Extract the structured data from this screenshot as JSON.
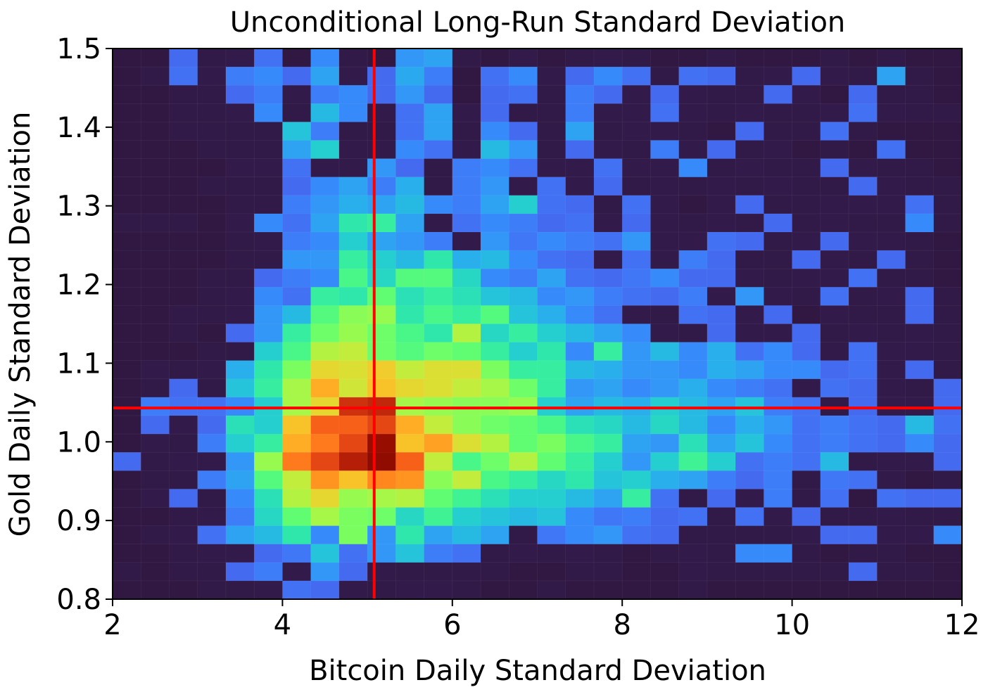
{
  "chart_data": {
    "type": "heatmap",
    "title": "Unconditional Long-Run Standard Deviation",
    "xlabel": "Bitcoin Daily Standard Deviation",
    "ylabel": "Gold Daily Standard Deviation",
    "xlim": [
      2,
      12
    ],
    "ylim": [
      0.8,
      1.5
    ],
    "x_ticks": [
      2,
      4,
      6,
      8,
      10,
      12
    ],
    "x_tick_labels": [
      "2",
      "4",
      "6",
      "8",
      "10",
      "12"
    ],
    "y_ticks": [
      0.8,
      0.9,
      1.0,
      1.1,
      1.2,
      1.3,
      1.4,
      1.5
    ],
    "y_tick_labels": [
      "0.8",
      "0.9",
      "1.0",
      "1.1",
      "1.2",
      "1.3",
      "1.4",
      "1.5"
    ],
    "grid": false,
    "colormap": "turbo",
    "bins_x": 30,
    "bins_y": 30,
    "reference_lines": {
      "vertical_x": 5.08,
      "horizontal_y": 1.043,
      "color": "#ff0000"
    },
    "peak": {
      "x": 5.17,
      "y": 1.0,
      "level": 1.0
    },
    "density_levels_note": "values normalized 0-1 per cell, rows from top (y=1.5) to bottom (y=0.8)",
    "density": [
      [
        0.02,
        0.02,
        0.05,
        0.03,
        0.04,
        0.06,
        0.02,
        0.1,
        0.03,
        0.02,
        0.12,
        0.14,
        0.03,
        0.02,
        0.04,
        0.02,
        0.03,
        0.04,
        0.03,
        0.02,
        0.02,
        0.03,
        0.02,
        0.02,
        0.02,
        0.03,
        0.02,
        0.03,
        0.02,
        0.02
      ],
      [
        0.02,
        0.03,
        0.06,
        0.04,
        0.08,
        0.1,
        0.05,
        0.14,
        0.04,
        0.05,
        0.15,
        0.08,
        0.02,
        0.06,
        0.1,
        0.04,
        0.05,
        0.1,
        0.06,
        0.03,
        0.06,
        0.05,
        0.03,
        0.04,
        0.05,
        0.04,
        0.03,
        0.14,
        0.03,
        0.02
      ],
      [
        0.02,
        0.02,
        0.03,
        0.03,
        0.05,
        0.08,
        0.04,
        0.08,
        0.1,
        0.05,
        0.12,
        0.05,
        0.02,
        0.05,
        0.06,
        0.03,
        0.08,
        0.05,
        0.04,
        0.05,
        0.04,
        0.03,
        0.03,
        0.05,
        0.04,
        0.02,
        0.05,
        0.03,
        0.03,
        0.02
      ],
      [
        0.02,
        0.02,
        0.03,
        0.03,
        0.04,
        0.1,
        0.03,
        0.18,
        0.1,
        0.04,
        0.06,
        0.14,
        0.04,
        0.05,
        0.03,
        0.03,
        0.08,
        0.04,
        0.04,
        0.06,
        0.04,
        0.03,
        0.04,
        0.03,
        0.03,
        0.04,
        0.06,
        0.04,
        0.03,
        0.03
      ],
      [
        0.02,
        0.02,
        0.03,
        0.03,
        0.03,
        0.03,
        0.2,
        0.08,
        0.03,
        0.03,
        0.06,
        0.14,
        0.03,
        0.1,
        0.05,
        0.03,
        0.14,
        0.03,
        0.04,
        0.04,
        0.03,
        0.02,
        0.05,
        0.03,
        0.03,
        0.06,
        0.03,
        0.02,
        0.02,
        0.02
      ],
      [
        0.02,
        0.02,
        0.02,
        0.03,
        0.03,
        0.03,
        0.14,
        0.22,
        0.04,
        0.04,
        0.1,
        0.06,
        0.04,
        0.18,
        0.12,
        0.03,
        0.05,
        0.04,
        0.03,
        0.08,
        0.04,
        0.05,
        0.03,
        0.04,
        0.02,
        0.03,
        0.02,
        0.06,
        0.02,
        0.02
      ],
      [
        0.02,
        0.02,
        0.02,
        0.02,
        0.04,
        0.04,
        0.06,
        0.04,
        0.04,
        0.12,
        0.05,
        0.03,
        0.08,
        0.1,
        0.06,
        0.04,
        0.04,
        0.06,
        0.04,
        0.04,
        0.1,
        0.03,
        0.04,
        0.03,
        0.03,
        0.05,
        0.04,
        0.03,
        0.03,
        0.02
      ],
      [
        0.02,
        0.02,
        0.02,
        0.03,
        0.03,
        0.03,
        0.05,
        0.1,
        0.14,
        0.08,
        0.16,
        0.03,
        0.08,
        0.12,
        0.04,
        0.06,
        0.04,
        0.05,
        0.03,
        0.04,
        0.03,
        0.04,
        0.03,
        0.04,
        0.03,
        0.03,
        0.05,
        0.04,
        0.03,
        0.03
      ],
      [
        0.02,
        0.02,
        0.02,
        0.02,
        0.03,
        0.03,
        0.08,
        0.12,
        0.16,
        0.14,
        0.18,
        0.1,
        0.08,
        0.14,
        0.22,
        0.06,
        0.05,
        0.03,
        0.06,
        0.04,
        0.02,
        0.04,
        0.05,
        0.03,
        0.03,
        0.04,
        0.04,
        0.04,
        0.06,
        0.03
      ],
      [
        0.03,
        0.03,
        0.03,
        0.02,
        0.04,
        0.1,
        0.06,
        0.14,
        0.28,
        0.3,
        0.14,
        0.04,
        0.06,
        0.1,
        0.08,
        0.05,
        0.06,
        0.04,
        0.05,
        0.04,
        0.03,
        0.04,
        0.03,
        0.05,
        0.03,
        0.04,
        0.03,
        0.03,
        0.1,
        0.03
      ],
      [
        0.02,
        0.02,
        0.02,
        0.02,
        0.03,
        0.04,
        0.08,
        0.1,
        0.22,
        0.14,
        0.12,
        0.08,
        0.04,
        0.12,
        0.07,
        0.1,
        0.08,
        0.06,
        0.12,
        0.04,
        0.04,
        0.06,
        0.05,
        0.03,
        0.04,
        0.05,
        0.04,
        0.04,
        0.03,
        0.02
      ],
      [
        0.02,
        0.02,
        0.02,
        0.02,
        0.03,
        0.03,
        0.12,
        0.12,
        0.3,
        0.22,
        0.18,
        0.28,
        0.16,
        0.18,
        0.1,
        0.06,
        0.05,
        0.04,
        0.06,
        0.04,
        0.08,
        0.05,
        0.03,
        0.03,
        0.05,
        0.04,
        0.03,
        0.05,
        0.03,
        0.02
      ],
      [
        0.02,
        0.02,
        0.02,
        0.03,
        0.03,
        0.05,
        0.08,
        0.1,
        0.34,
        0.24,
        0.36,
        0.36,
        0.24,
        0.1,
        0.08,
        0.14,
        0.06,
        0.05,
        0.07,
        0.1,
        0.05,
        0.05,
        0.04,
        0.03,
        0.04,
        0.04,
        0.06,
        0.03,
        0.03,
        0.02
      ],
      [
        0.02,
        0.02,
        0.02,
        0.03,
        0.04,
        0.1,
        0.06,
        0.3,
        0.28,
        0.38,
        0.26,
        0.3,
        0.26,
        0.2,
        0.18,
        0.1,
        0.12,
        0.08,
        0.06,
        0.05,
        0.08,
        0.04,
        0.12,
        0.04,
        0.03,
        0.06,
        0.03,
        0.04,
        0.05,
        0.03
      ],
      [
        0.02,
        0.02,
        0.03,
        0.03,
        0.04,
        0.12,
        0.18,
        0.36,
        0.44,
        0.46,
        0.28,
        0.34,
        0.3,
        0.36,
        0.2,
        0.16,
        0.1,
        0.06,
        0.04,
        0.03,
        0.06,
        0.05,
        0.04,
        0.05,
        0.02,
        0.04,
        0.03,
        0.03,
        0.05,
        0.03
      ],
      [
        0.02,
        0.02,
        0.03,
        0.02,
        0.05,
        0.12,
        0.3,
        0.4,
        0.46,
        0.4,
        0.34,
        0.28,
        0.5,
        0.24,
        0.3,
        0.22,
        0.18,
        0.14,
        0.1,
        0.04,
        0.03,
        0.05,
        0.04,
        0.04,
        0.05,
        0.03,
        0.04,
        0.03,
        0.04,
        0.03
      ],
      [
        0.02,
        0.02,
        0.02,
        0.03,
        0.03,
        0.22,
        0.34,
        0.5,
        0.52,
        0.4,
        0.36,
        0.4,
        0.38,
        0.3,
        0.22,
        0.28,
        0.1,
        0.3,
        0.12,
        0.18,
        0.1,
        0.16,
        0.06,
        0.1,
        0.05,
        0.04,
        0.06,
        0.04,
        0.04,
        0.03
      ],
      [
        0.02,
        0.04,
        0.03,
        0.04,
        0.16,
        0.28,
        0.42,
        0.58,
        0.56,
        0.6,
        0.52,
        0.56,
        0.56,
        0.42,
        0.3,
        0.3,
        0.18,
        0.16,
        0.12,
        0.12,
        0.1,
        0.16,
        0.14,
        0.1,
        0.1,
        0.05,
        0.06,
        0.04,
        0.05,
        0.03
      ],
      [
        0.02,
        0.03,
        0.05,
        0.03,
        0.2,
        0.3,
        0.48,
        0.66,
        0.54,
        0.62,
        0.58,
        0.56,
        0.52,
        0.48,
        0.4,
        0.3,
        0.12,
        0.14,
        0.1,
        0.12,
        0.16,
        0.1,
        0.08,
        0.06,
        0.04,
        0.06,
        0.05,
        0.04,
        0.03,
        0.05
      ],
      [
        0.02,
        0.08,
        0.06,
        0.06,
        0.1,
        0.22,
        0.48,
        0.58,
        0.86,
        0.88,
        0.48,
        0.46,
        0.44,
        0.44,
        0.46,
        0.22,
        0.14,
        0.18,
        0.16,
        0.22,
        0.18,
        0.14,
        0.2,
        0.08,
        0.06,
        0.03,
        0.05,
        0.04,
        0.04,
        0.05
      ],
      [
        0.02,
        0.05,
        0.04,
        0.05,
        0.26,
        0.22,
        0.62,
        0.78,
        0.78,
        0.82,
        0.66,
        0.52,
        0.44,
        0.4,
        0.38,
        0.34,
        0.26,
        0.24,
        0.18,
        0.24,
        0.18,
        0.1,
        0.16,
        0.12,
        0.06,
        0.08,
        0.06,
        0.05,
        0.18,
        0.06
      ],
      [
        0.02,
        0.04,
        0.03,
        0.08,
        0.22,
        0.3,
        0.66,
        0.74,
        0.82,
        0.96,
        0.62,
        0.68,
        0.56,
        0.5,
        0.38,
        0.42,
        0.34,
        0.3,
        0.14,
        0.12,
        0.26,
        0.14,
        0.2,
        0.1,
        0.06,
        0.08,
        0.06,
        0.05,
        0.1,
        0.05
      ],
      [
        0.05,
        0.03,
        0.04,
        0.04,
        0.12,
        0.46,
        0.74,
        0.82,
        0.9,
        1.0,
        0.78,
        0.52,
        0.34,
        0.4,
        0.5,
        0.38,
        0.3,
        0.22,
        0.12,
        0.22,
        0.32,
        0.22,
        0.06,
        0.08,
        0.06,
        0.18,
        0.03,
        0.04,
        0.04,
        0.05
      ],
      [
        0.02,
        0.03,
        0.03,
        0.08,
        0.14,
        0.36,
        0.52,
        0.7,
        0.62,
        0.72,
        0.7,
        0.44,
        0.52,
        0.34,
        0.3,
        0.24,
        0.28,
        0.2,
        0.22,
        0.16,
        0.14,
        0.08,
        0.05,
        0.08,
        0.03,
        0.07,
        0.06,
        0.04,
        0.02,
        0.03
      ],
      [
        0.02,
        0.04,
        0.05,
        0.03,
        0.1,
        0.26,
        0.5,
        0.58,
        0.46,
        0.48,
        0.5,
        0.38,
        0.32,
        0.26,
        0.22,
        0.22,
        0.18,
        0.14,
        0.3,
        0.06,
        0.03,
        0.05,
        0.04,
        0.08,
        0.03,
        0.06,
        0.02,
        0.06,
        0.05,
        0.05
      ],
      [
        0.02,
        0.02,
        0.03,
        0.04,
        0.08,
        0.24,
        0.38,
        0.48,
        0.42,
        0.4,
        0.24,
        0.32,
        0.22,
        0.2,
        0.18,
        0.2,
        0.1,
        0.07,
        0.08,
        0.05,
        0.06,
        0.03,
        0.06,
        0.04,
        0.05,
        0.03,
        0.03,
        0.04,
        0.03,
        0.03
      ],
      [
        0.02,
        0.03,
        0.04,
        0.06,
        0.14,
        0.18,
        0.28,
        0.1,
        0.42,
        0.12,
        0.28,
        0.14,
        0.18,
        0.14,
        0.03,
        0.07,
        0.1,
        0.12,
        0.06,
        0.05,
        0.03,
        0.03,
        0.03,
        0.03,
        0.04,
        0.05,
        0.05,
        0.04,
        0.04,
        0.1
      ],
      [
        0.02,
        0.02,
        0.03,
        0.04,
        0.04,
        0.05,
        0.07,
        0.2,
        0.06,
        0.12,
        0.2,
        0.08,
        0.06,
        0.03,
        0.04,
        0.03,
        0.04,
        0.03,
        0.02,
        0.03,
        0.04,
        0.03,
        0.1,
        0.1,
        0.03,
        0.02,
        0.03,
        0.03,
        0.02,
        0.02
      ],
      [
        0.03,
        0.02,
        0.03,
        0.03,
        0.05,
        0.08,
        0.04,
        0.12,
        0.05,
        0.04,
        0.03,
        0.03,
        0.03,
        0.03,
        0.02,
        0.02,
        0.03,
        0.03,
        0.02,
        0.02,
        0.04,
        0.03,
        0.03,
        0.03,
        0.03,
        0.03,
        0.05,
        0.03,
        0.03,
        0.02
      ],
      [
        0.02,
        0.02,
        0.02,
        0.03,
        0.03,
        0.04,
        0.06,
        0.05,
        0.04,
        0.03,
        0.04,
        0.04,
        0.03,
        0.02,
        0.02,
        0.03,
        0.02,
        0.02,
        0.02,
        0.02,
        0.03,
        0.02,
        0.02,
        0.02,
        0.02,
        0.02,
        0.02,
        0.02,
        0.02,
        0.02
      ]
    ]
  }
}
